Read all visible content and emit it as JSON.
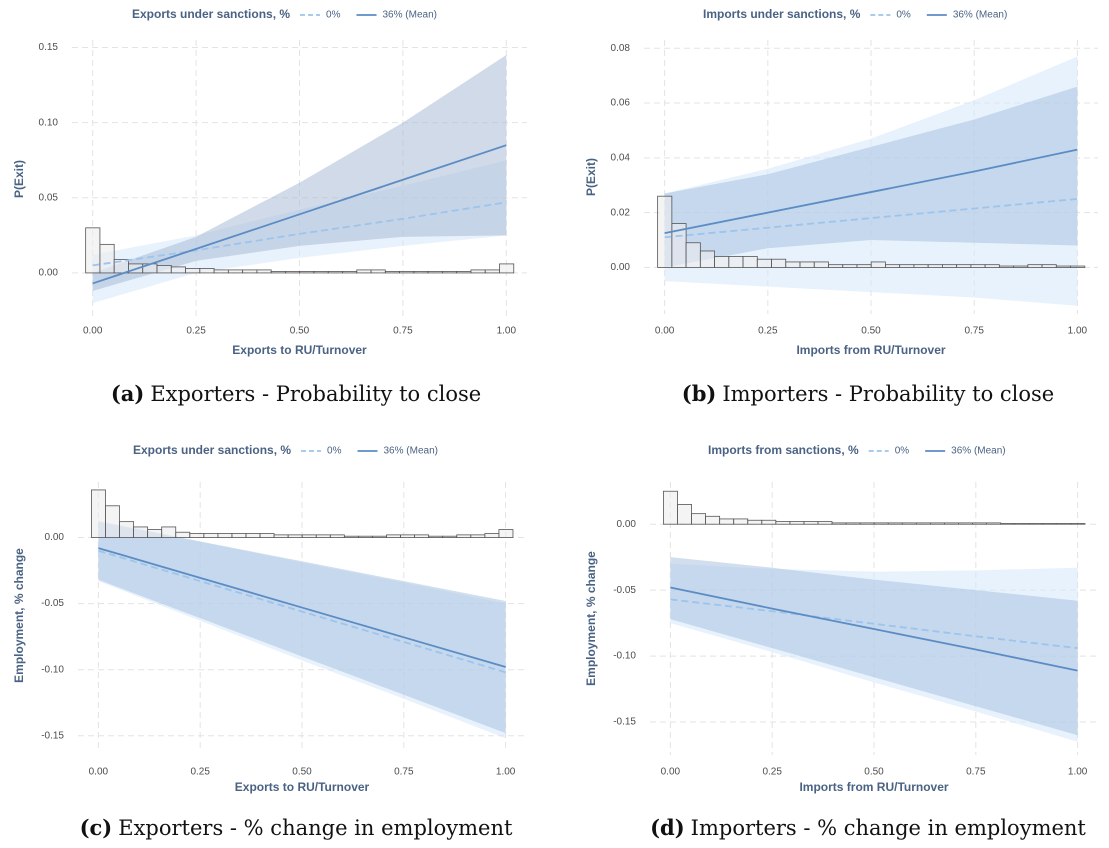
{
  "chart_data": [
    {
      "type": "line",
      "legend_title": "Exports under sanctions, %",
      "xlabel": "Exports to RU/Turnover",
      "ylabel": "P(Exit)",
      "caption_label": "(a)",
      "caption": "Exporters - Probability to close",
      "grid": true,
      "xlim": [
        -0.05,
        1.05
      ],
      "ylim": [
        -0.03,
        0.155
      ],
      "xticks": [
        {
          "value": 0,
          "label": "0.00"
        },
        {
          "value": 0.25,
          "label": "0.25"
        },
        {
          "value": 0.5,
          "label": "0.50"
        },
        {
          "value": 0.75,
          "label": "0.75"
        },
        {
          "value": 1,
          "label": "1.00"
        }
      ],
      "yticks": [
        {
          "value": 0,
          "label": "0.00"
        },
        {
          "value": 0.05,
          "label": "0.05"
        },
        {
          "value": 0.1,
          "label": "0.10"
        },
        {
          "value": 0.15,
          "label": "0.15"
        }
      ],
      "x": [
        0,
        0.25,
        0.5,
        0.75,
        1
      ],
      "series": [
        {
          "name": "0%",
          "color": "#9cc4ec",
          "band_color": "#d6e8fb",
          "dashed": true,
          "values": [
            0.005,
            0.015,
            0.026,
            0.036,
            0.047
          ],
          "lower": [
            -0.02,
            0.0,
            0.01,
            0.018,
            0.025
          ],
          "upper": [
            0.012,
            0.025,
            0.042,
            0.058,
            0.075
          ]
        },
        {
          "name": "36% (Mean)",
          "color": "#5b8cc4",
          "band_color": "#a9bcd6",
          "dashed": false,
          "values": [
            -0.007,
            0.016,
            0.039,
            0.062,
            0.085
          ],
          "lower": [
            -0.012,
            0.008,
            0.018,
            0.024,
            0.025
          ],
          "upper": [
            0.0,
            0.024,
            0.06,
            0.1,
            0.145
          ]
        }
      ],
      "histogram": {
        "bins": [
          -0.017,
          0.0175,
          0.052,
          0.0865,
          0.121,
          0.1555,
          0.19,
          0.2245,
          0.259,
          0.2935,
          0.328,
          0.3625,
          0.397,
          0.4315,
          0.466,
          0.5005,
          0.535,
          0.5695,
          0.604,
          0.6385,
          0.673,
          0.7075,
          0.742,
          0.7765,
          0.811,
          0.8455,
          0.88,
          0.9145,
          0.949,
          0.9835,
          1.018
        ],
        "counts": [
          0.03,
          0.019,
          0.009,
          0.006,
          0.006,
          0.005,
          0.004,
          0.003,
          0.003,
          0.002,
          0.002,
          0.002,
          0.002,
          0.001,
          0.001,
          0.001,
          0.001,
          0.001,
          0.001,
          0.002,
          0.002,
          0.001,
          0.001,
          0.001,
          0.001,
          0.001,
          0.001,
          0.002,
          0.002,
          0.006
        ]
      }
    },
    {
      "type": "line",
      "legend_title": "Imports under sanctions, %",
      "xlabel": "Imports from RU/Turnover",
      "ylabel": "P(Exit)",
      "caption_label": "(b)",
      "caption": "Importers - Probability to close",
      "grid": true,
      "xlim": [
        -0.05,
        1.05
      ],
      "ylim": [
        -0.017,
        0.083
      ],
      "xticks": [
        {
          "value": 0,
          "label": "0.00"
        },
        {
          "value": 0.25,
          "label": "0.25"
        },
        {
          "value": 0.5,
          "label": "0.50"
        },
        {
          "value": 0.75,
          "label": "0.75"
        },
        {
          "value": 1,
          "label": "1.00"
        }
      ],
      "yticks": [
        {
          "value": 0,
          "label": "0.00"
        },
        {
          "value": 0.02,
          "label": "0.02"
        },
        {
          "value": 0.04,
          "label": "0.04"
        },
        {
          "value": 0.06,
          "label": "0.06"
        },
        {
          "value": 0.08,
          "label": "0.08"
        }
      ],
      "x": [
        0,
        0.25,
        0.5,
        0.75,
        1
      ],
      "series": [
        {
          "name": "0%",
          "color": "#9cc4ec",
          "band_color": "#d6e8fb",
          "dashed": true,
          "values": [
            0.011,
            0.0145,
            0.018,
            0.0215,
            0.025
          ],
          "lower": [
            -0.005,
            -0.007,
            -0.009,
            -0.011,
            -0.014
          ],
          "upper": [
            0.027,
            0.036,
            0.047,
            0.061,
            0.077
          ]
        },
        {
          "name": "36% (Mean)",
          "color": "#5b8cc4",
          "band_color": "#a9c3e0",
          "dashed": false,
          "values": [
            0.0125,
            0.02,
            0.0275,
            0.035,
            0.043
          ],
          "lower": [
            0.0,
            0.007,
            0.01,
            0.009,
            0.008
          ],
          "upper": [
            0.027,
            0.034,
            0.044,
            0.054,
            0.066
          ]
        }
      ],
      "histogram": {
        "bins": [
          -0.017,
          0.0175,
          0.052,
          0.0865,
          0.121,
          0.1555,
          0.19,
          0.2245,
          0.259,
          0.2935,
          0.328,
          0.3625,
          0.397,
          0.4315,
          0.466,
          0.5005,
          0.535,
          0.5695,
          0.604,
          0.6385,
          0.673,
          0.7075,
          0.742,
          0.7765,
          0.811,
          0.8455,
          0.88,
          0.9145,
          0.949,
          0.9835,
          1.018
        ],
        "counts": [
          0.026,
          0.016,
          0.009,
          0.006,
          0.004,
          0.004,
          0.004,
          0.003,
          0.003,
          0.002,
          0.002,
          0.002,
          0.001,
          0.001,
          0.001,
          0.002,
          0.001,
          0.001,
          0.001,
          0.001,
          0.001,
          0.001,
          0.001,
          0.001,
          0.0005,
          0.0005,
          0.001,
          0.001,
          0.0005,
          0.0005
        ]
      }
    },
    {
      "type": "line",
      "legend_title": "Exports under sanctions, %",
      "xlabel": "Exports to RU/Turnover",
      "ylabel": "Employment, % change",
      "caption_label": "(c)",
      "caption": "Exporters - % change in employment",
      "grid": true,
      "xlim": [
        -0.05,
        1.05
      ],
      "ylim": [
        -0.16,
        0.042
      ],
      "xticks": [
        {
          "value": 0,
          "label": "0.00"
        },
        {
          "value": 0.25,
          "label": "0.25"
        },
        {
          "value": 0.5,
          "label": "0.50"
        },
        {
          "value": 0.75,
          "label": "0.75"
        },
        {
          "value": 1,
          "label": "1.00"
        }
      ],
      "yticks": [
        {
          "value": -0.15,
          "label": "-0.15"
        },
        {
          "value": -0.1,
          "label": "-0.10"
        },
        {
          "value": -0.05,
          "label": "-0.05"
        },
        {
          "value": 0,
          "label": "0.00"
        }
      ],
      "x": [
        0,
        0.25,
        0.5,
        0.75,
        1
      ],
      "series": [
        {
          "name": "0%",
          "color": "#9cc4ec",
          "band_color": "#d6e8fb",
          "dashed": true,
          "values": [
            -0.01,
            -0.033,
            -0.056,
            -0.079,
            -0.102
          ],
          "lower": [
            -0.033,
            -0.063,
            -0.093,
            -0.122,
            -0.152
          ],
          "upper": [
            0.013,
            -0.003,
            -0.019,
            -0.034,
            -0.05
          ]
        },
        {
          "name": "36% (Mean)",
          "color": "#5b8cc4",
          "band_color": "#a9c3e0",
          "dashed": false,
          "values": [
            -0.008,
            -0.0305,
            -0.053,
            -0.0755,
            -0.098
          ],
          "lower": [
            -0.032,
            -0.061,
            -0.09,
            -0.119,
            -0.148
          ],
          "upper": [
            0.012,
            -0.003,
            -0.018,
            -0.033,
            -0.048
          ]
        }
      ],
      "histogram": {
        "bins": [
          -0.017,
          0.0175,
          0.052,
          0.0865,
          0.121,
          0.1555,
          0.19,
          0.2245,
          0.259,
          0.2935,
          0.328,
          0.3625,
          0.397,
          0.4315,
          0.466,
          0.5005,
          0.535,
          0.5695,
          0.604,
          0.6385,
          0.673,
          0.7075,
          0.742,
          0.7765,
          0.811,
          0.8455,
          0.88,
          0.9145,
          0.949,
          0.9835,
          1.018
        ],
        "counts": [
          0.036,
          0.024,
          0.012,
          0.008,
          0.006,
          0.008,
          0.004,
          0.003,
          0.003,
          0.003,
          0.003,
          0.003,
          0.003,
          0.002,
          0.002,
          0.002,
          0.002,
          0.002,
          0.001,
          0.001,
          0.001,
          0.002,
          0.002,
          0.002,
          0.001,
          0.001,
          0.002,
          0.002,
          0.003,
          0.006
        ]
      }
    },
    {
      "type": "line",
      "legend_title": "Imports from sanctions, %",
      "xlabel": "Imports from RU/Turnover",
      "ylabel": "Employment, % change",
      "caption_label": "(d)",
      "caption": "Importers - % change in employment",
      "grid": true,
      "xlim": [
        -0.05,
        1.05
      ],
      "ylim": [
        -0.175,
        0.032
      ],
      "xticks": [
        {
          "value": 0,
          "label": "0.00"
        },
        {
          "value": 0.25,
          "label": "0.25"
        },
        {
          "value": 0.5,
          "label": "0.50"
        },
        {
          "value": 0.75,
          "label": "0.75"
        },
        {
          "value": 1,
          "label": "1.00"
        }
      ],
      "yticks": [
        {
          "value": -0.15,
          "label": "-0.15"
        },
        {
          "value": -0.1,
          "label": "-0.10"
        },
        {
          "value": -0.05,
          "label": "-0.05"
        },
        {
          "value": 0,
          "label": "0.00"
        }
      ],
      "x": [
        0,
        0.25,
        0.5,
        0.75,
        1
      ],
      "series": [
        {
          "name": "0%",
          "color": "#9cc4ec",
          "band_color": "#d6e8fb",
          "dashed": true,
          "values": [
            -0.057,
            -0.066,
            -0.0755,
            -0.085,
            -0.094
          ],
          "lower": [
            -0.075,
            -0.097,
            -0.12,
            -0.142,
            -0.165
          ],
          "upper": [
            -0.03,
            -0.034,
            -0.036,
            -0.035,
            -0.033
          ]
        },
        {
          "name": "36% (Mean)",
          "color": "#5b8cc4",
          "band_color": "#a9c3e0",
          "dashed": false,
          "values": [
            -0.048,
            -0.064,
            -0.0795,
            -0.095,
            -0.111
          ],
          "lower": [
            -0.072,
            -0.094,
            -0.116,
            -0.138,
            -0.16
          ],
          "upper": [
            -0.025,
            -0.033,
            -0.042,
            -0.05,
            -0.058
          ]
        }
      ],
      "histogram": {
        "bins": [
          -0.017,
          0.0175,
          0.052,
          0.0865,
          0.121,
          0.1555,
          0.19,
          0.2245,
          0.259,
          0.2935,
          0.328,
          0.3625,
          0.397,
          0.4315,
          0.466,
          0.5005,
          0.535,
          0.5695,
          0.604,
          0.6385,
          0.673,
          0.7075,
          0.742,
          0.7765,
          0.811,
          0.8455,
          0.88,
          0.9145,
          0.949,
          0.9835,
          1.018
        ],
        "counts": [
          0.025,
          0.015,
          0.008,
          0.006,
          0.004,
          0.004,
          0.003,
          0.003,
          0.002,
          0.002,
          0.002,
          0.002,
          0.001,
          0.001,
          0.001,
          0.001,
          0.001,
          0.001,
          0.001,
          0.001,
          0.001,
          0.001,
          0.001,
          0.001,
          0.0005,
          0.0005,
          0.0005,
          0.0005,
          0.0005,
          0.0005
        ]
      }
    }
  ]
}
